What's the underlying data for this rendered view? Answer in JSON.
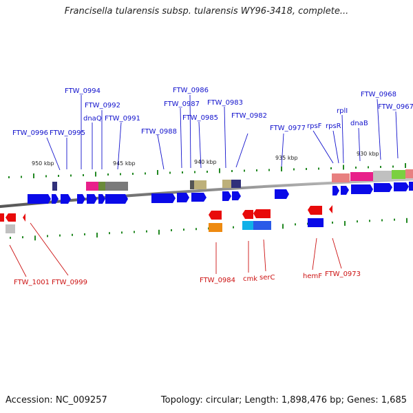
{
  "title": "Francisella tularensis subsp. tularensis WY96-3418, complete...",
  "footer": {
    "accession": "Accession: NC_009257",
    "summary": "Topology: circular; Length: 1,898,476 bp; Genes: 1,685"
  },
  "ruler": {
    "labels": [
      "950 kbp",
      "945 kbp",
      "940 kbp",
      "935 kbp",
      "930 kbp"
    ]
  },
  "colors": {
    "forward_label": "#1010cc",
    "reverse_label": "#cc1010",
    "tick": "#228822",
    "backbone": "#8a8a8a"
  },
  "forward_genes": [
    "FTW_0996",
    "FTW_0995",
    "FTW_0994",
    "dnaQ",
    "FTW_0992",
    "FTW_0991",
    "FTW_0988",
    "FTW_0987",
    "FTW_0986",
    "FTW_0985",
    "FTW_0983",
    "FTW_0982",
    "FTW_0977",
    "rpsF",
    "rpsR",
    "rplI",
    "dnaB",
    "FTW_0968",
    "FTW_0967"
  ],
  "reverse_genes": [
    "FTW_1001",
    "FTW_0999",
    "FTW_0984",
    "cmk",
    "serC",
    "hemF",
    "FTW_0973"
  ]
}
